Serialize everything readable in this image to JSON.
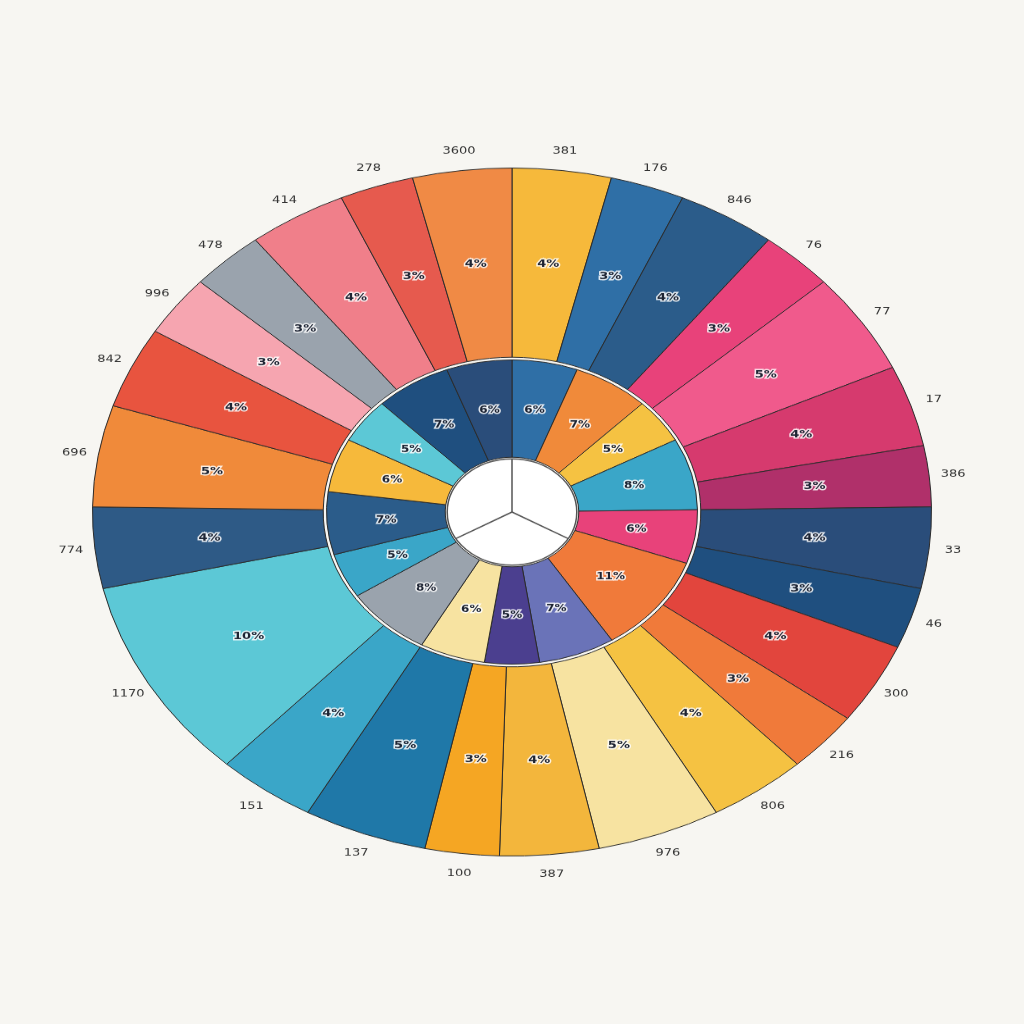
{
  "chart_data": [
    {
      "type": "doughnut",
      "categories": [
        "381",
        "176",
        "846",
        "76",
        "77",
        "17",
        "386",
        "33",
        "46",
        "300",
        "216",
        "806",
        "976",
        "387",
        "100",
        "137",
        "151",
        "1170",
        "774",
        "696",
        "842",
        "996",
        "478",
        "414",
        "278",
        "3600"
      ],
      "values": [
        4,
        3,
        4,
        3,
        5,
        4,
        3,
        4,
        3,
        4,
        3,
        4,
        5,
        4,
        3,
        5,
        4,
        10,
        4,
        5,
        4,
        3,
        3,
        4,
        3,
        4
      ],
      "value_labels": [
        "4%",
        "3%",
        "4%",
        "3%",
        "5%",
        "4%",
        "3%",
        "4%",
        "3%",
        "4%",
        "3%",
        "4%",
        "5%",
        "4%",
        "3%",
        "5%",
        "4%",
        "10%",
        "4%",
        "5%",
        "4%",
        "3%",
        "3%",
        "4%",
        "3%",
        "4%"
      ],
      "colors": [
        "#f6b93b",
        "#2f6fa6",
        "#2b5c8a",
        "#e8427a",
        "#f05a8c",
        "#d63a6e",
        "#b0306a",
        "#2a4d7a",
        "#1f4f7f",
        "#e2453d",
        "#f07a3a",
        "#f5c242",
        "#f7e3a1",
        "#f3b63c",
        "#f5a623",
        "#1f78a8",
        "#3aa6c8",
        "#5cc8d6",
        "#2e5a86",
        "#f08a3a",
        "#e8543f",
        "#f6a5b0",
        "#9aa3ad",
        "#f07f8a",
        "#e65a4e",
        "#f08a45"
      ],
      "data_labels": true
    },
    {
      "type": "doughnut",
      "values": [
        6,
        7,
        5,
        8,
        6,
        11,
        7,
        5,
        6,
        8,
        5,
        7,
        6,
        5,
        7,
        6
      ],
      "value_labels": [
        "6%",
        "7%",
        "5%",
        "8%",
        "6%",
        "11%",
        "7%",
        "5%",
        "6%",
        "8%",
        "5%",
        "7%",
        "6%",
        "5%",
        "7%",
        "6%"
      ],
      "colors": [
        "#2f6fa6",
        "#f08a3a",
        "#f5c242",
        "#3aa6c8",
        "#e8427a",
        "#f07a3a",
        "#6a73b8",
        "#4b3f8f",
        "#f7e3a1",
        "#9aa3ad",
        "#3aa6c8",
        "#2b5c8a",
        "#f6b93b",
        "#5cc8d6",
        "#1f4f7f",
        "#2a4d7a"
      ],
      "data_labels": true
    }
  ]
}
